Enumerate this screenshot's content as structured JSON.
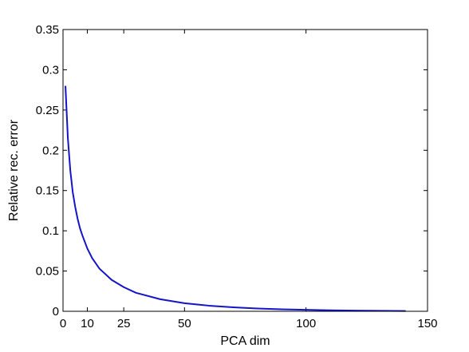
{
  "chart_data": {
    "type": "line",
    "title": "",
    "xlabel": "PCA dim",
    "ylabel": "Relative rec. error",
    "xlim": [
      0,
      150
    ],
    "ylim": [
      0,
      0.35
    ],
    "xticks": [
      0,
      10,
      25,
      50,
      100,
      150
    ],
    "xtick_labels": [
      "0",
      "10",
      "25",
      "50",
      "100",
      "150"
    ],
    "yticks": [
      0,
      0.05,
      0.1,
      0.15,
      0.2,
      0.25,
      0.3,
      0.35
    ],
    "ytick_labels": [
      "0",
      "0.05",
      "0.1",
      "0.15",
      "0.2",
      "0.25",
      "0.3",
      "0.35"
    ],
    "grid": false,
    "line_color": "#1414c8",
    "series": [
      {
        "x": [
          1,
          2,
          3,
          4,
          5,
          6,
          7,
          8,
          10,
          12,
          15,
          20,
          25,
          30,
          40,
          50,
          60,
          70,
          80,
          90,
          100,
          110,
          120,
          130,
          141
        ],
        "y": [
          0.28,
          0.215,
          0.175,
          0.148,
          0.13,
          0.115,
          0.103,
          0.094,
          0.078,
          0.066,
          0.053,
          0.039,
          0.03,
          0.023,
          0.015,
          0.01,
          0.007,
          0.005,
          0.0035,
          0.0025,
          0.0018,
          0.0013,
          0.0009,
          0.0006,
          0.0004
        ]
      }
    ]
  }
}
